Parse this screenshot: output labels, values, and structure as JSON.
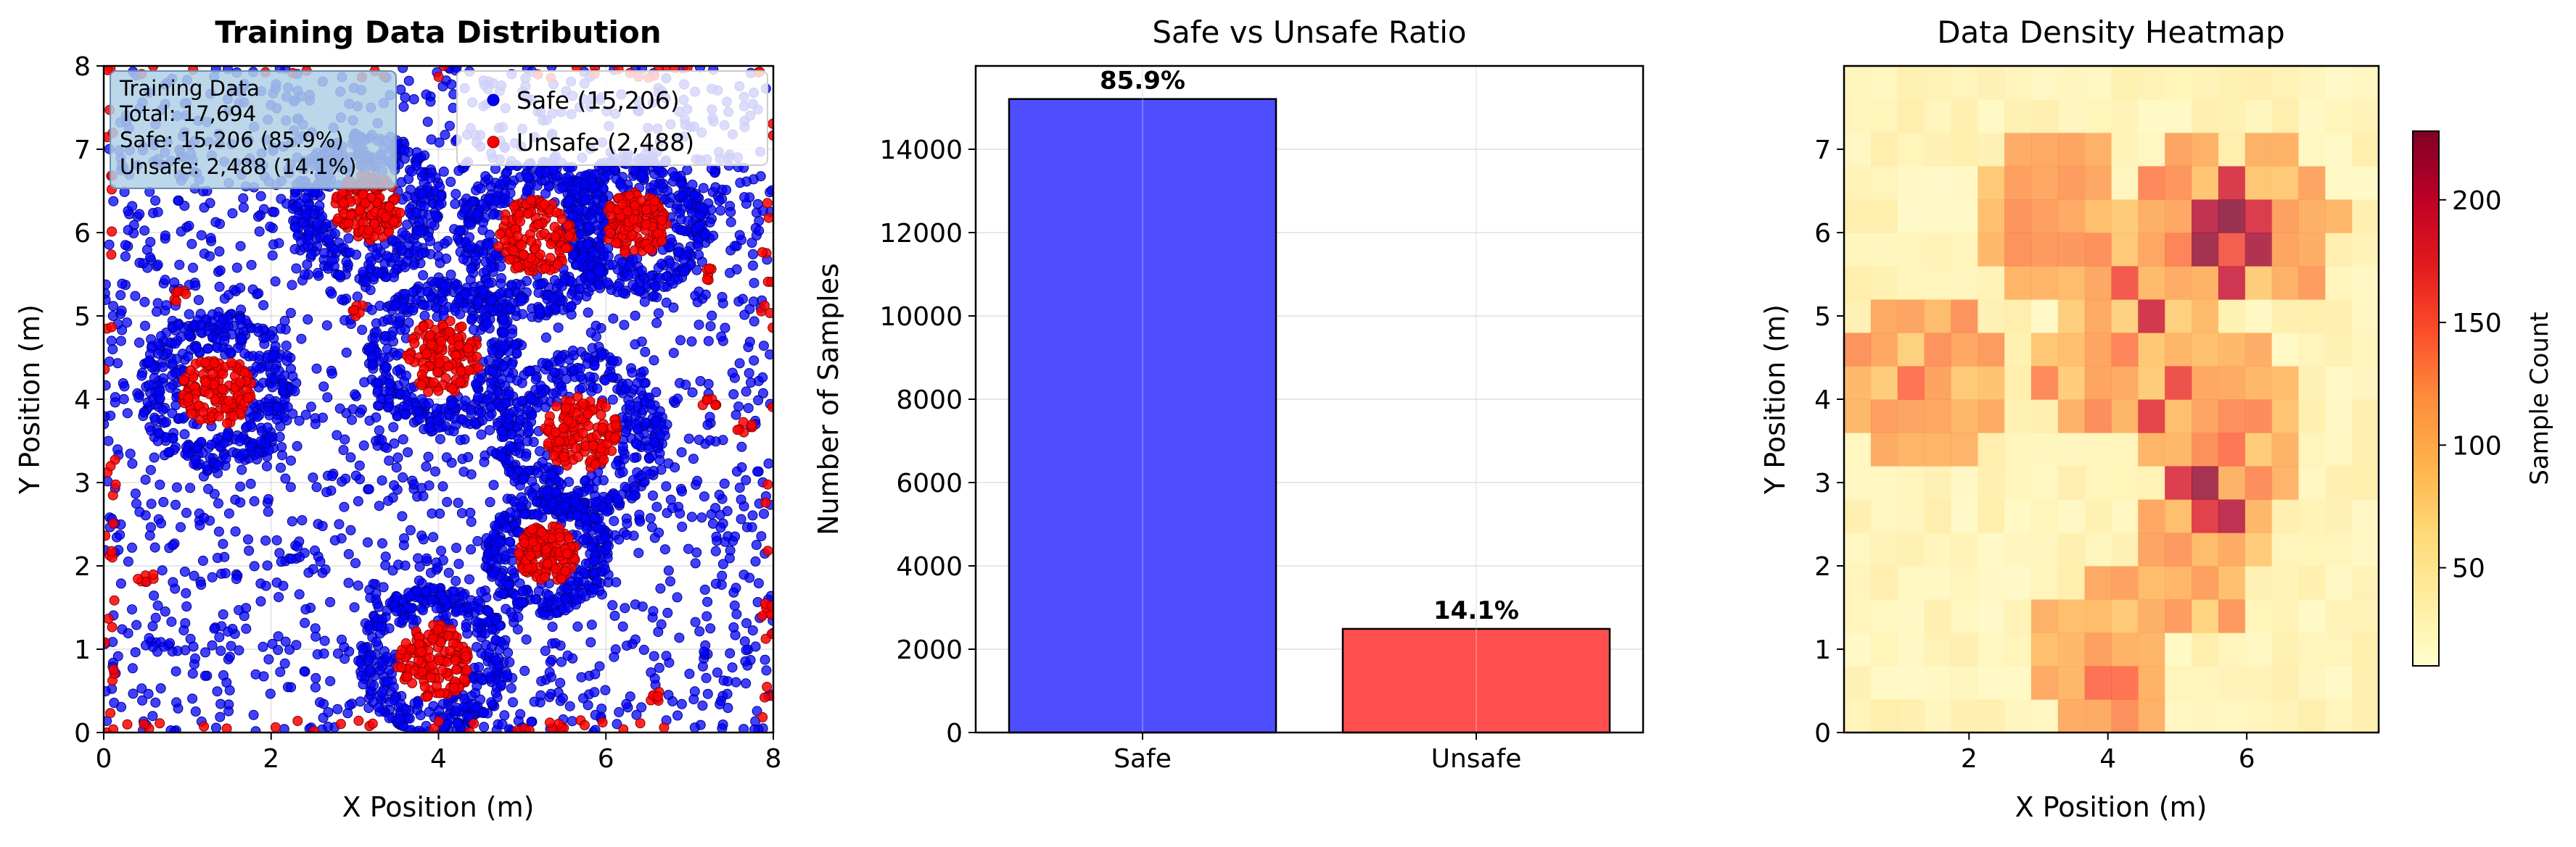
{
  "chart_data": [
    {
      "type": "scatter",
      "title": "Training Data Distribution",
      "xlabel": "X Position (m)",
      "ylabel": "Y Position (m)",
      "xlim": [
        0,
        8
      ],
      "ylim": [
        0,
        8
      ],
      "xticks": [
        "0",
        "2",
        "4",
        "6",
        "8"
      ],
      "yticks": [
        "0",
        "1",
        "2",
        "3",
        "4",
        "5",
        "6",
        "7",
        "8"
      ],
      "grid": true,
      "colors": {
        "safe": "#0000ff",
        "unsafe": "#ff0000"
      },
      "obstacles": [
        {
          "cx": 1.35,
          "cy": 4.1,
          "r_unsafe": 0.42,
          "r_safe": 0.95
        },
        {
          "cx": 3.15,
          "cy": 6.3,
          "r_unsafe": 0.4,
          "r_safe": 0.9
        },
        {
          "cx": 4.05,
          "cy": 4.5,
          "r_unsafe": 0.45,
          "r_safe": 0.9
        },
        {
          "cx": 5.15,
          "cy": 5.95,
          "r_unsafe": 0.45,
          "r_safe": 0.95
        },
        {
          "cx": 6.35,
          "cy": 6.1,
          "r_unsafe": 0.38,
          "r_safe": 0.85
        },
        {
          "cx": 5.7,
          "cy": 3.6,
          "r_unsafe": 0.45,
          "r_safe": 1.0
        },
        {
          "cx": 5.3,
          "cy": 2.15,
          "r_unsafe": 0.35,
          "r_safe": 0.75
        },
        {
          "cx": 3.95,
          "cy": 0.85,
          "r_unsafe": 0.45,
          "r_safe": 0.9
        }
      ],
      "legend": {
        "location": "upper right",
        "entries": [
          {
            "label": "Safe (15,206)",
            "color": "#0000ff"
          },
          {
            "label": "Unsafe (2,488)",
            "color": "#ff0000"
          }
        ]
      },
      "info_box": {
        "location": "upper left",
        "lines": [
          "Training Data",
          "Total: 17,694",
          "Safe: 15,206 (85.9%)",
          "Unsafe: 2,488 (14.1%)"
        ]
      }
    },
    {
      "type": "bar",
      "title": "Safe vs Unsafe Ratio",
      "ylabel": "Number of Samples",
      "categories": [
        "Safe",
        "Unsafe"
      ],
      "values": [
        15206,
        2488
      ],
      "bar_labels": [
        "85.9%",
        "14.1%"
      ],
      "colors": [
        "#4444ff",
        "#ff4444"
      ],
      "ylim": [
        0,
        16000
      ],
      "yticks": [
        "0",
        "2000",
        "4000",
        "6000",
        "8000",
        "10000",
        "12000",
        "14000"
      ],
      "grid": true
    },
    {
      "type": "heatmap",
      "title": "Data Density Heatmap",
      "xlabel": "X Position (m)",
      "ylabel": "Y Position (m)",
      "xlim": [
        0,
        8
      ],
      "ylim": [
        0,
        8
      ],
      "xticks": [
        "2",
        "4",
        "6"
      ],
      "yticks": [
        "0",
        "1",
        "2",
        "3",
        "4",
        "5",
        "6",
        "7"
      ],
      "bins": 20,
      "colormap": "YlOrRd",
      "colorbar": {
        "label": "Sample Count",
        "range": [
          10,
          228
        ],
        "ticks": [
          "50",
          "100",
          "150",
          "200"
        ]
      }
    }
  ]
}
